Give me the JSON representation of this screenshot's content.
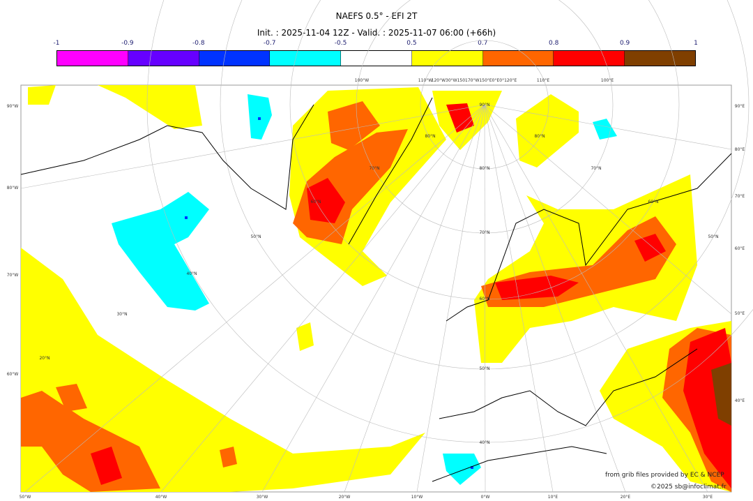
{
  "title": "NAEFS 0.5° - EFI 2T",
  "subtitle": "Init. : 2025-11-04 12Z - Valid. : 2025-11-07 06:00 (+66h)",
  "colorbar": {
    "ticks": [
      "-1",
      "-0.9",
      "-0.8",
      "-0.7",
      "-0.5",
      "0.5",
      "0.7",
      "0.8",
      "0.9",
      "1"
    ],
    "colors": [
      "#ff00ff",
      "#6600ff",
      "#0033ff",
      "#00ffff",
      "#ffffff",
      "#ffff00",
      "#ff6600",
      "#ff0000",
      "#7f3f00"
    ]
  },
  "axes": {
    "left": [
      "90°W",
      "80°W",
      "70°W",
      "60°W"
    ],
    "right": [
      "90°E",
      "80°E",
      "70°E",
      "60°E",
      "50°E",
      "40°E"
    ],
    "bottom": [
      "50°W",
      "40°W",
      "30°W",
      "20°W",
      "10°W",
      "0°W",
      "10°E",
      "20°E",
      "30°E"
    ],
    "top": [
      "100°W",
      "110°W",
      "120°W30°W150170°W150°E0°E0°120°E",
      "110°E",
      "100°E"
    ],
    "latitudes": [
      "90°N",
      "80°N",
      "70°N",
      "60°N",
      "50°N",
      "40°N",
      "80°N",
      "70°N",
      "60°N",
      "50°N",
      "40°N",
      "30°N",
      "20°N",
      "80°N",
      "70°N",
      "60°N",
      "50°N"
    ]
  },
  "credits": {
    "source": "from grib files provided by EC & NCEP",
    "copyright": "©2025 sb@infoclimat.fr"
  }
}
